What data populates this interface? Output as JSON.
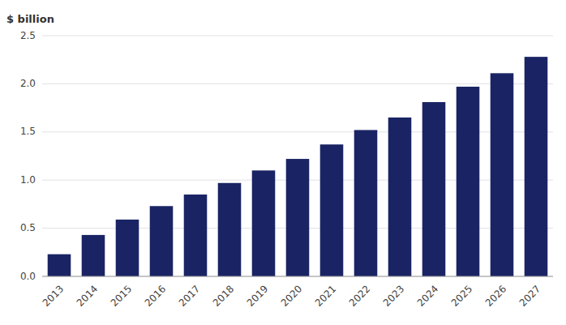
{
  "chart_data": {
    "type": "bar",
    "ylabel": "$ billion",
    "categories": [
      "2013",
      "2014",
      "2015",
      "2016",
      "2017",
      "2018",
      "2019",
      "2020",
      "2021",
      "2022",
      "2023",
      "2024",
      "2025",
      "2026",
      "2027"
    ],
    "values": [
      0.23,
      0.43,
      0.59,
      0.73,
      0.85,
      0.97,
      1.1,
      1.22,
      1.37,
      1.52,
      1.65,
      1.81,
      1.97,
      2.11,
      2.28
    ],
    "color": "#1a2464",
    "ylim": [
      0,
      2.5
    ],
    "yticks": [
      {
        "value": 0.0,
        "label": "0.0"
      },
      0.5,
      {
        "value": 1.0,
        "label": "1.0"
      },
      1.5,
      {
        "value": 2.0,
        "label": "2.0"
      },
      2.5
    ],
    "grid": true
  }
}
